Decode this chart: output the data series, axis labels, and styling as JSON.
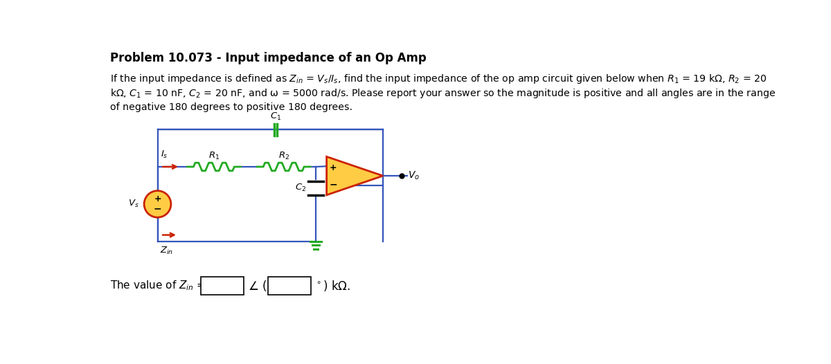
{
  "title": "Problem 10.073 - Input impedance of an Op Amp",
  "title_fontsize": 12,
  "bg_color": "#ffffff",
  "wire_color": "#3355bb",
  "resistor_color": "#22aa22",
  "opamp_fill": "#ffcc44",
  "opamp_edge": "#cc2200",
  "source_fill": "#ffcc44",
  "source_edge": "#cc2200",
  "arrow_color": "#cc2200",
  "ground_color": "#22aa22",
  "c1_color": "#22aa22",
  "c2_color": "#000000",
  "zin_label_color": "#000000",
  "text_color": "#000000"
}
